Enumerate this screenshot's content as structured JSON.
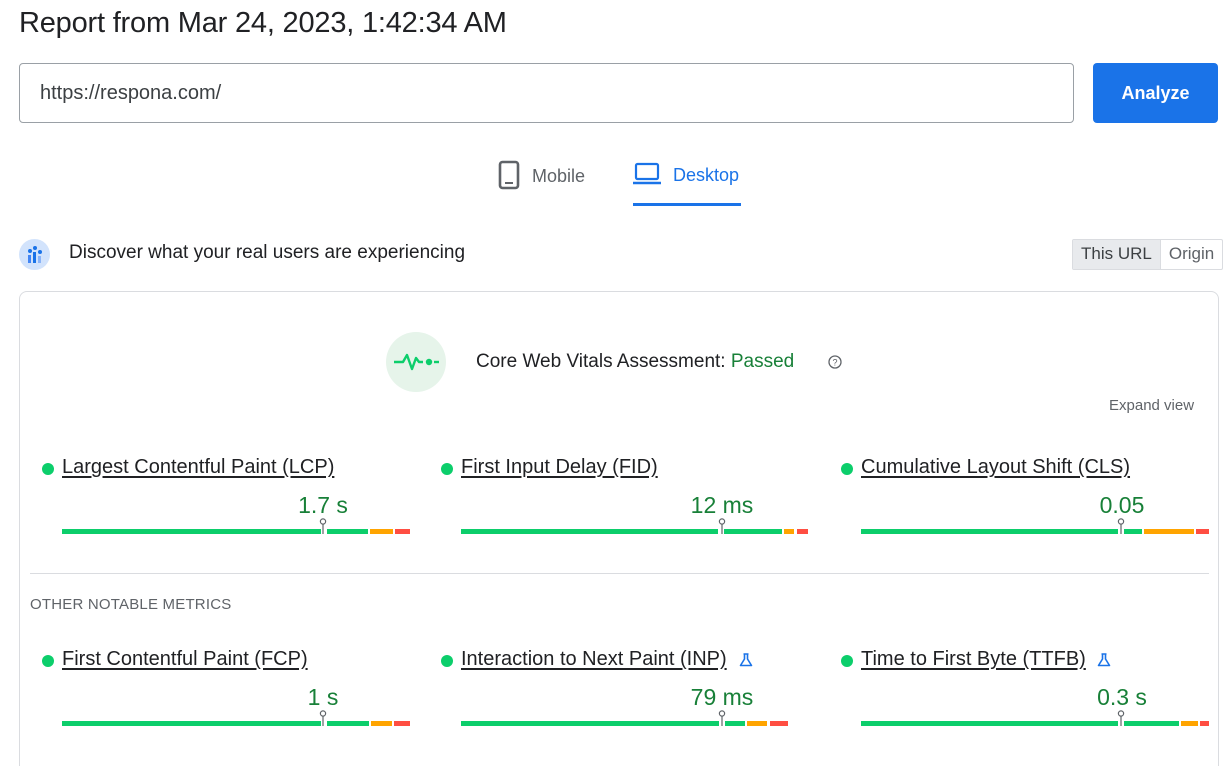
{
  "report_title": "Report from Mar 24, 2023, 1:42:34 AM",
  "url_input": {
    "value": "https://respona.com/"
  },
  "analyze_label": "Analyze",
  "tabs": [
    {
      "label": "Mobile",
      "icon": "smartphone-icon",
      "active": false
    },
    {
      "label": "Desktop",
      "icon": "laptop-icon",
      "active": true
    }
  ],
  "field_data": {
    "heading": "Discover what your real users are experiencing",
    "toggle": [
      "This URL",
      "Origin"
    ]
  },
  "assessment": {
    "label": "Core Web Vitals Assessment:",
    "status": "Passed",
    "expand_label": "Expand view"
  },
  "core_metrics": [
    {
      "name": "Largest Contentful Paint (LCP)",
      "value": "1.7 s"
    },
    {
      "name": "First Input Delay (FID)",
      "value": "12 ms"
    },
    {
      "name": "Cumulative Layout Shift (CLS)",
      "value": "0.05"
    }
  ],
  "other_label": "OTHER NOTABLE METRICS",
  "other_metrics": [
    {
      "name": "First Contentful Paint (FCP)",
      "value": "1 s",
      "experimental": false
    },
    {
      "name": "Interaction to Next Paint (INP)",
      "value": "79 ms",
      "experimental": true
    },
    {
      "name": "Time to First Byte (TTFB)",
      "value": "0.3 s",
      "experimental": true
    }
  ],
  "colors": {
    "good": "#0cce6b",
    "needs_improvement": "#ffa400",
    "poor": "#ff4e42",
    "accent": "#1a73e8",
    "pass_text": "#188038"
  }
}
